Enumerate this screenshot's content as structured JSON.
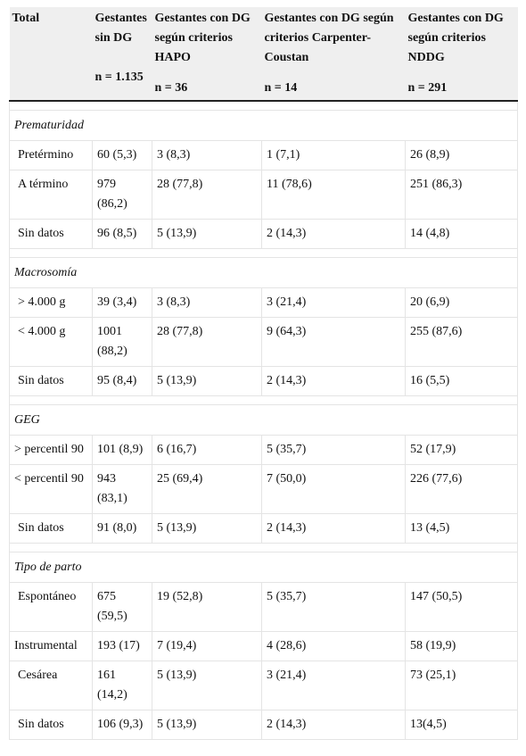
{
  "header": {
    "col0": {
      "title": "Total",
      "n": ""
    },
    "col1": {
      "title": "Gestantes sin DG",
      "n": "n = 1.135"
    },
    "col2": {
      "title": "Gestantes con DG según criterios HAPO",
      "n": "n = 36"
    },
    "col3": {
      "title": "Gestantes con DG según criterios Carpenter-Coustan",
      "n": "n = 14"
    },
    "col4": {
      "title": "Gestantes con DG según criterios NDDG",
      "n": "n = 291"
    }
  },
  "sections": [
    {
      "title": "Prematuridad",
      "rows": [
        {
          "label": "Pretérmino",
          "values": [
            "60 (5,3)",
            "3 (8,3)",
            "1 (7,1)",
            "26 (8,9)"
          ]
        },
        {
          "label": "A término",
          "values": [
            "979 (86,2)",
            "28 (77,8)",
            "11 (78,6)",
            "251 (86,3)"
          ]
        },
        {
          "label": "Sin datos",
          "values": [
            "96 (8,5)",
            "5 (13,9)",
            "2 (14,3)",
            "14 (4,8)"
          ]
        }
      ]
    },
    {
      "title": "Macrosomía",
      "rows": [
        {
          "label": "> 4.000 g",
          "values": [
            "39 (3,4)",
            "3 (8,3)",
            "3 (21,4)",
            "20 (6,9)"
          ]
        },
        {
          "label": "< 4.000 g",
          "values": [
            "1001 (88,2)",
            "28 (77,8)",
            "9 (64,3)",
            "255 (87,6)"
          ]
        },
        {
          "label": "Sin datos",
          "values": [
            "95 (8,4)",
            "5 (13,9)",
            "2 (14,3)",
            "16 (5,5)"
          ]
        }
      ]
    },
    {
      "title": "GEG",
      "rows": [
        {
          "label": "> percentil 90",
          "values": [
            "101 (8,9)",
            "6 (16,7)",
            "5 (35,7)",
            "52 (17,9)"
          ]
        },
        {
          "label": "< percentil 90",
          "values": [
            "943 (83,1)",
            "25 (69,4)",
            "7 (50,0)",
            "226 (77,6)"
          ]
        },
        {
          "label": "Sin datos",
          "values": [
            "91 (8,0)",
            "5 (13,9)",
            "2 (14,3)",
            "13 (4,5)"
          ]
        }
      ]
    },
    {
      "title": "Tipo de parto",
      "rows": [
        {
          "label": "Espontáneo",
          "values": [
            "675 (59,5)",
            "19 (52,8)",
            "5 (35,7)",
            "147 (50,5)"
          ]
        },
        {
          "label": "Instrumental",
          "values": [
            "193 (17)",
            "7 (19,4)",
            "4 (28,6)",
            "58 (19,9)"
          ]
        },
        {
          "label": "Cesárea",
          "values": [
            "161 (14,2)",
            "5 (13,9)",
            "3 (21,4)",
            "73 (25,1)"
          ]
        },
        {
          "label": "Sin datos",
          "values": [
            "106 (9,3)",
            "5 (13,9)",
            "2 (14,3)",
            "13(4,5)"
          ]
        }
      ]
    }
  ]
}
